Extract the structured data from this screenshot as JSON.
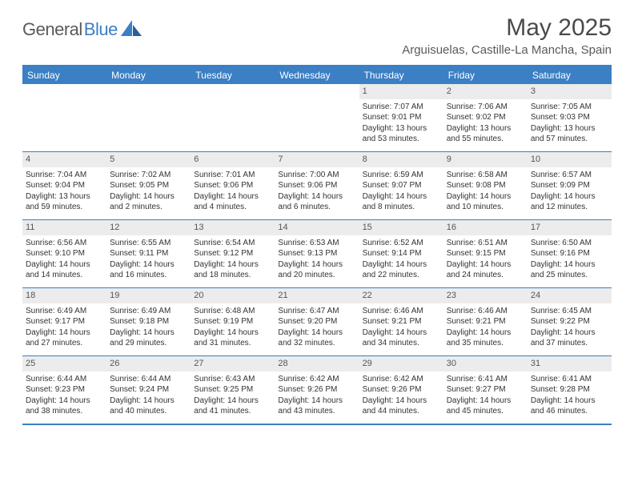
{
  "brand": {
    "name_a": "General",
    "name_b": "Blue"
  },
  "title": "May 2025",
  "location": "Arguisuelas, Castille-La Mancha, Spain",
  "colors": {
    "accent": "#3b7fc4",
    "header_text": "#ffffff",
    "daybar": "#ececec",
    "text": "#333333",
    "muted": "#5a5a5a"
  },
  "day_headers": [
    "Sunday",
    "Monday",
    "Tuesday",
    "Wednesday",
    "Thursday",
    "Friday",
    "Saturday"
  ],
  "weeks": [
    [
      {
        "empty": true
      },
      {
        "empty": true
      },
      {
        "empty": true
      },
      {
        "empty": true
      },
      {
        "n": "1",
        "sr": "Sunrise: 7:07 AM",
        "ss": "Sunset: 9:01 PM",
        "d1": "Daylight: 13 hours",
        "d2": "and 53 minutes."
      },
      {
        "n": "2",
        "sr": "Sunrise: 7:06 AM",
        "ss": "Sunset: 9:02 PM",
        "d1": "Daylight: 13 hours",
        "d2": "and 55 minutes."
      },
      {
        "n": "3",
        "sr": "Sunrise: 7:05 AM",
        "ss": "Sunset: 9:03 PM",
        "d1": "Daylight: 13 hours",
        "d2": "and 57 minutes."
      }
    ],
    [
      {
        "n": "4",
        "sr": "Sunrise: 7:04 AM",
        "ss": "Sunset: 9:04 PM",
        "d1": "Daylight: 13 hours",
        "d2": "and 59 minutes."
      },
      {
        "n": "5",
        "sr": "Sunrise: 7:02 AM",
        "ss": "Sunset: 9:05 PM",
        "d1": "Daylight: 14 hours",
        "d2": "and 2 minutes."
      },
      {
        "n": "6",
        "sr": "Sunrise: 7:01 AM",
        "ss": "Sunset: 9:06 PM",
        "d1": "Daylight: 14 hours",
        "d2": "and 4 minutes."
      },
      {
        "n": "7",
        "sr": "Sunrise: 7:00 AM",
        "ss": "Sunset: 9:06 PM",
        "d1": "Daylight: 14 hours",
        "d2": "and 6 minutes."
      },
      {
        "n": "8",
        "sr": "Sunrise: 6:59 AM",
        "ss": "Sunset: 9:07 PM",
        "d1": "Daylight: 14 hours",
        "d2": "and 8 minutes."
      },
      {
        "n": "9",
        "sr": "Sunrise: 6:58 AM",
        "ss": "Sunset: 9:08 PM",
        "d1": "Daylight: 14 hours",
        "d2": "and 10 minutes."
      },
      {
        "n": "10",
        "sr": "Sunrise: 6:57 AM",
        "ss": "Sunset: 9:09 PM",
        "d1": "Daylight: 14 hours",
        "d2": "and 12 minutes."
      }
    ],
    [
      {
        "n": "11",
        "sr": "Sunrise: 6:56 AM",
        "ss": "Sunset: 9:10 PM",
        "d1": "Daylight: 14 hours",
        "d2": "and 14 minutes."
      },
      {
        "n": "12",
        "sr": "Sunrise: 6:55 AM",
        "ss": "Sunset: 9:11 PM",
        "d1": "Daylight: 14 hours",
        "d2": "and 16 minutes."
      },
      {
        "n": "13",
        "sr": "Sunrise: 6:54 AM",
        "ss": "Sunset: 9:12 PM",
        "d1": "Daylight: 14 hours",
        "d2": "and 18 minutes."
      },
      {
        "n": "14",
        "sr": "Sunrise: 6:53 AM",
        "ss": "Sunset: 9:13 PM",
        "d1": "Daylight: 14 hours",
        "d2": "and 20 minutes."
      },
      {
        "n": "15",
        "sr": "Sunrise: 6:52 AM",
        "ss": "Sunset: 9:14 PM",
        "d1": "Daylight: 14 hours",
        "d2": "and 22 minutes."
      },
      {
        "n": "16",
        "sr": "Sunrise: 6:51 AM",
        "ss": "Sunset: 9:15 PM",
        "d1": "Daylight: 14 hours",
        "d2": "and 24 minutes."
      },
      {
        "n": "17",
        "sr": "Sunrise: 6:50 AM",
        "ss": "Sunset: 9:16 PM",
        "d1": "Daylight: 14 hours",
        "d2": "and 25 minutes."
      }
    ],
    [
      {
        "n": "18",
        "sr": "Sunrise: 6:49 AM",
        "ss": "Sunset: 9:17 PM",
        "d1": "Daylight: 14 hours",
        "d2": "and 27 minutes."
      },
      {
        "n": "19",
        "sr": "Sunrise: 6:49 AM",
        "ss": "Sunset: 9:18 PM",
        "d1": "Daylight: 14 hours",
        "d2": "and 29 minutes."
      },
      {
        "n": "20",
        "sr": "Sunrise: 6:48 AM",
        "ss": "Sunset: 9:19 PM",
        "d1": "Daylight: 14 hours",
        "d2": "and 31 minutes."
      },
      {
        "n": "21",
        "sr": "Sunrise: 6:47 AM",
        "ss": "Sunset: 9:20 PM",
        "d1": "Daylight: 14 hours",
        "d2": "and 32 minutes."
      },
      {
        "n": "22",
        "sr": "Sunrise: 6:46 AM",
        "ss": "Sunset: 9:21 PM",
        "d1": "Daylight: 14 hours",
        "d2": "and 34 minutes."
      },
      {
        "n": "23",
        "sr": "Sunrise: 6:46 AM",
        "ss": "Sunset: 9:21 PM",
        "d1": "Daylight: 14 hours",
        "d2": "and 35 minutes."
      },
      {
        "n": "24",
        "sr": "Sunrise: 6:45 AM",
        "ss": "Sunset: 9:22 PM",
        "d1": "Daylight: 14 hours",
        "d2": "and 37 minutes."
      }
    ],
    [
      {
        "n": "25",
        "sr": "Sunrise: 6:44 AM",
        "ss": "Sunset: 9:23 PM",
        "d1": "Daylight: 14 hours",
        "d2": "and 38 minutes."
      },
      {
        "n": "26",
        "sr": "Sunrise: 6:44 AM",
        "ss": "Sunset: 9:24 PM",
        "d1": "Daylight: 14 hours",
        "d2": "and 40 minutes."
      },
      {
        "n": "27",
        "sr": "Sunrise: 6:43 AM",
        "ss": "Sunset: 9:25 PM",
        "d1": "Daylight: 14 hours",
        "d2": "and 41 minutes."
      },
      {
        "n": "28",
        "sr": "Sunrise: 6:42 AM",
        "ss": "Sunset: 9:26 PM",
        "d1": "Daylight: 14 hours",
        "d2": "and 43 minutes."
      },
      {
        "n": "29",
        "sr": "Sunrise: 6:42 AM",
        "ss": "Sunset: 9:26 PM",
        "d1": "Daylight: 14 hours",
        "d2": "and 44 minutes."
      },
      {
        "n": "30",
        "sr": "Sunrise: 6:41 AM",
        "ss": "Sunset: 9:27 PM",
        "d1": "Daylight: 14 hours",
        "d2": "and 45 minutes."
      },
      {
        "n": "31",
        "sr": "Sunrise: 6:41 AM",
        "ss": "Sunset: 9:28 PM",
        "d1": "Daylight: 14 hours",
        "d2": "and 46 minutes."
      }
    ]
  ]
}
